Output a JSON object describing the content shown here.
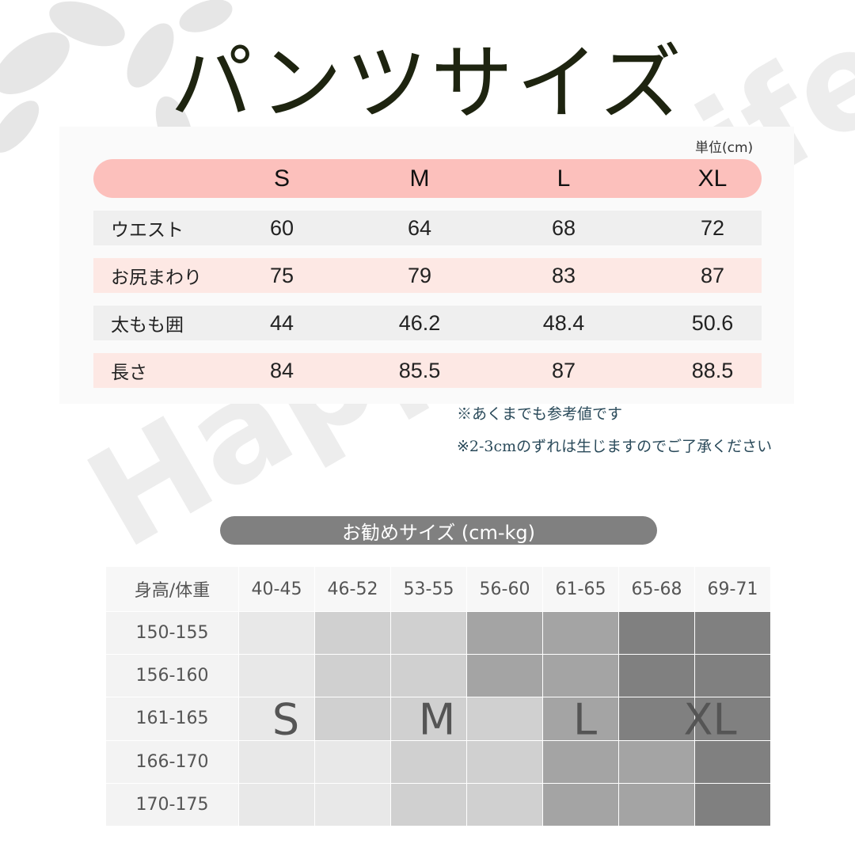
{
  "title": "パンツサイズ",
  "unit": "単位(cm)",
  "sizes": [
    "S",
    "M",
    "L",
    "XL"
  ],
  "measurements": [
    {
      "label": "ウエスト",
      "values": [
        "60",
        "64",
        "68",
        "72"
      ]
    },
    {
      "label": "お尻まわり",
      "values": [
        "75",
        "79",
        "83",
        "87"
      ]
    },
    {
      "label": "太もも囲",
      "values": [
        "44",
        "46.2",
        "48.4",
        "50.6"
      ]
    },
    {
      "label": "長さ",
      "values": [
        "84",
        "85.5",
        "87",
        "88.5"
      ]
    }
  ],
  "notes": [
    "※あくまでも参考値です",
    "※2-3cmのずれは生じますのでご了承ください"
  ],
  "recommend": {
    "title": "お勧めサイズ (cm-kg)",
    "corner": "身高/体重",
    "weights": [
      "40-45",
      "46-52",
      "53-55",
      "56-60",
      "61-65",
      "65-68",
      "69-71"
    ],
    "heights": [
      "150-155",
      "156-160",
      "161-165",
      "166-170",
      "170-175"
    ],
    "grid": [
      [
        "S",
        "M",
        "M",
        "L",
        "L",
        "XL",
        "XL"
      ],
      [
        "S",
        "M",
        "M",
        "L",
        "L",
        "XL",
        "XL"
      ],
      [
        "S",
        "M",
        "M",
        "M",
        "L",
        "XL",
        "XL"
      ],
      [
        "S",
        "S",
        "M",
        "M",
        "L",
        "L",
        "XL"
      ],
      [
        "S",
        "S",
        "M",
        "M",
        "L",
        "L",
        "XL"
      ]
    ],
    "size_colors": {
      "S": "#e8e8e8",
      "M": "#d0d0d0",
      "L": "#a4a4a4",
      "XL": "#808080"
    },
    "labels": [
      "S",
      "M",
      "L",
      "XL"
    ]
  },
  "watermark": "Happy@Life",
  "colors": {
    "header_pill": "#fcc0bc",
    "row_pink": "#fde8e4",
    "row_gray": "#efefef"
  }
}
